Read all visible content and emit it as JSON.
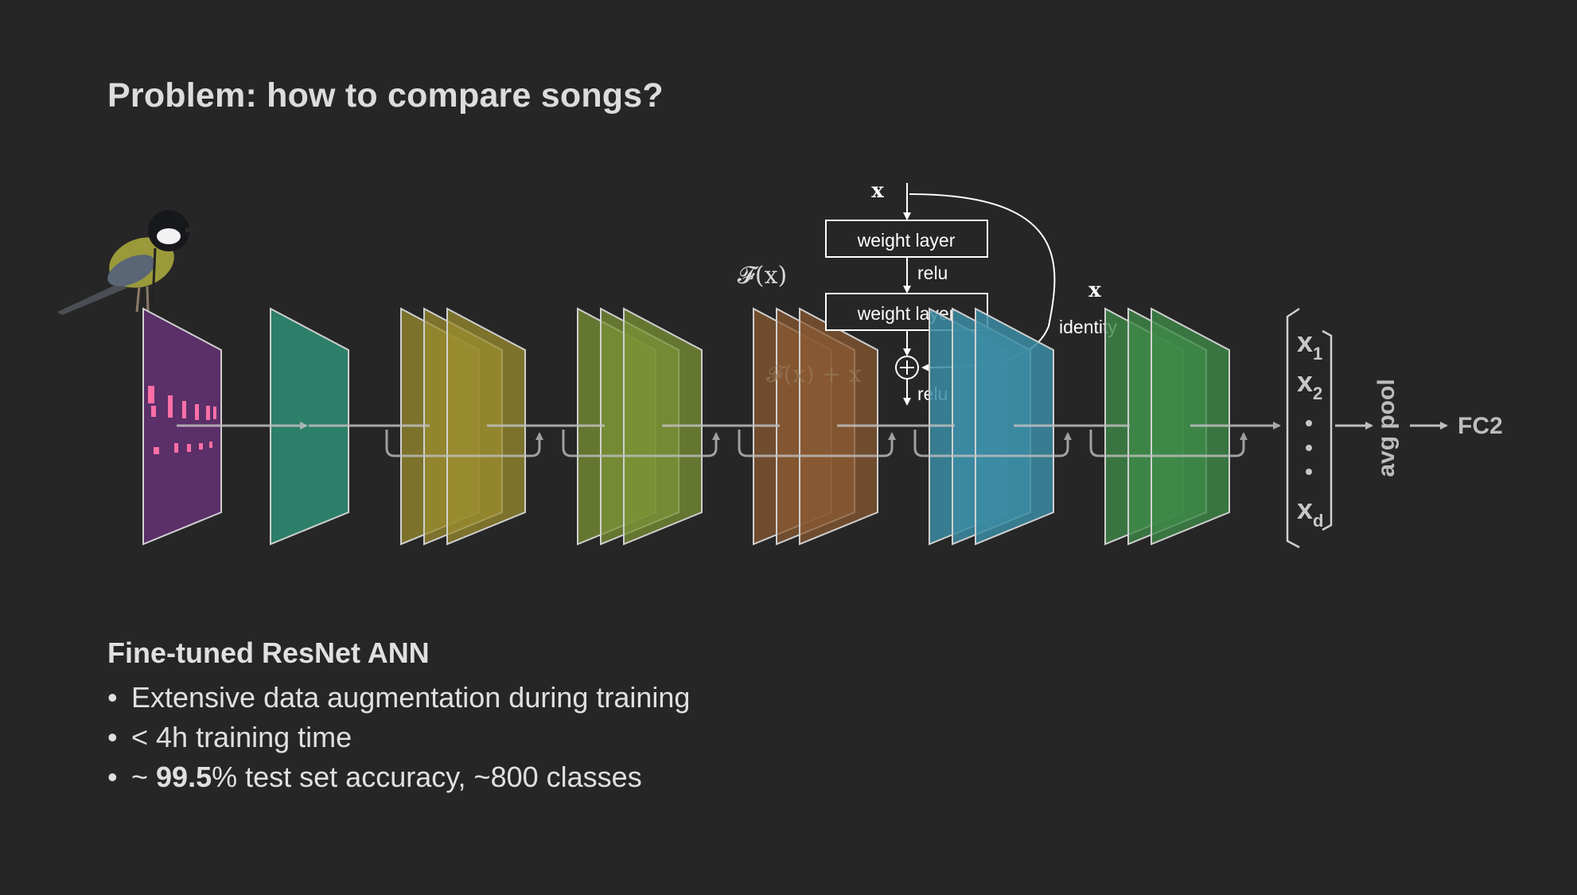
{
  "slide": {
    "title": "Problem: how to compare songs?"
  },
  "residual_block": {
    "input_label": "x",
    "layer1_label": "weight layer",
    "relu1_label": "relu",
    "fx_label": "𝓕(x)",
    "layer2_label": "weight layer",
    "sum_label": "𝓕(x) + x",
    "relu2_label": "relu",
    "skip_x_label": "x",
    "identity_label": "identity"
  },
  "output": {
    "vector_labels": [
      "x",
      "x",
      "x"
    ],
    "vector_subscripts": [
      "1",
      "2",
      "d"
    ],
    "pool_label": "avg pool",
    "fc_label": "FC2"
  },
  "notes": {
    "heading": "Fine-tuned ResNet ANN",
    "bullet1": "Extensive data augmentation during training",
    "bullet2": "< 4h training time",
    "bullet3_prefix": "~ ",
    "bullet3_bold": "99.5",
    "bullet3_suffix": "% test set accuracy, ~800 classes"
  },
  "colors": {
    "background": "#262626",
    "input_layer": "#5e2f6b",
    "stage1": "#2d8a70",
    "stage2": "#9a8c2f",
    "stage3": "#7b9136",
    "stage4": "#8a5a33",
    "stage5": "#3b8ca3",
    "stage6": "#3f8a48",
    "arrows": "#bfbfbf"
  }
}
